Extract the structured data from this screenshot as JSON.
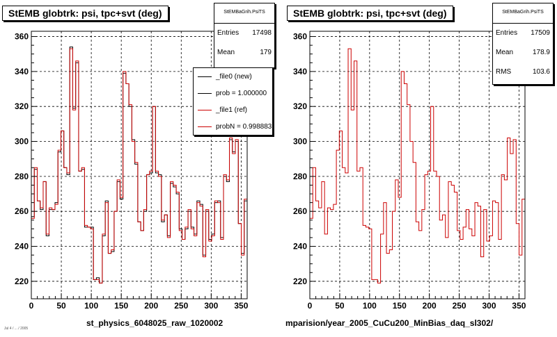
{
  "chart_data": [
    {
      "type": "line",
      "title": "StEMB globtrk: psi, tpc+svt (deg)",
      "xlabel": "st_physics_6048025_raw_1020002",
      "ylabel": "",
      "xlim": [
        0,
        360
      ],
      "ylim": [
        210,
        363
      ],
      "xticks": [
        0,
        50,
        100,
        150,
        200,
        250,
        300,
        350
      ],
      "yticks": [
        220,
        240,
        260,
        280,
        300,
        320,
        340,
        360
      ],
      "grid": true,
      "stats": {
        "name": "StEMBaGrih.PsiTS",
        "entries_label": "Entries",
        "entries": "17498",
        "mean_label": "Mean",
        "mean": "179"
      },
      "legend": {
        "placement": "top-right",
        "items": [
          {
            "label": "_file0 (new)",
            "color": "#000000"
          },
          {
            "label": "prob = 1.000000",
            "color": "#000000"
          },
          {
            "label": "_file1 (ref)",
            "color": "#cc0000"
          },
          {
            "label": "probN = 0.998883",
            "color": "#cc0000"
          }
        ]
      },
      "series": [
        {
          "name": "_file0 (new)",
          "color": "#000000",
          "values": [
            257,
            284,
            266,
            261,
            277,
            246,
            261,
            261,
            265,
            294,
            306,
            285,
            281,
            354,
            319,
            345,
            283,
            284,
            251,
            251,
            251,
            221,
            222,
            219,
            246,
            266,
            236,
            237,
            260,
            277,
            267,
            339,
            333,
            320,
            301,
            287,
            254,
            249,
            260,
            281,
            282,
            320,
            282,
            281,
            254,
            258,
            246,
            276,
            274,
            270,
            250,
            244,
            250,
            260,
            251,
            247,
            266,
            264,
            235,
            260,
            244,
            247,
            265,
            266,
            245,
            280,
            277,
            301,
            294,
            300,
            253,
            236,
            266
          ]
        },
        {
          "name": "_file1 (ref)",
          "color": "#cc0000",
          "values": [
            256,
            285,
            266,
            262,
            277,
            247,
            262,
            261,
            264,
            295,
            306,
            285,
            282,
            353,
            318,
            346,
            283,
            285,
            252,
            251,
            250,
            221,
            221,
            219,
            247,
            265,
            236,
            238,
            260,
            278,
            268,
            340,
            333,
            321,
            300,
            288,
            254,
            249,
            261,
            281,
            283,
            320,
            283,
            280,
            255,
            258,
            245,
            277,
            275,
            271,
            249,
            244,
            251,
            261,
            250,
            246,
            265,
            263,
            234,
            261,
            243,
            246,
            266,
            265,
            244,
            281,
            278,
            302,
            293,
            301,
            253,
            235,
            267
          ]
        }
      ]
    },
    {
      "type": "line",
      "title": "StEMB globtrk: psi, tpc+svt (deg)",
      "xlabel": "mparision/year_2005_CuCu200_MinBias_daq_sl302/",
      "ylabel": "",
      "xlim": [
        0,
        360
      ],
      "ylim": [
        210,
        363
      ],
      "xticks": [
        0,
        50,
        100,
        150,
        200,
        250,
        300,
        350
      ],
      "yticks": [
        220,
        240,
        260,
        280,
        300,
        320,
        340,
        360
      ],
      "grid": true,
      "stats": {
        "name": "StEMBaGrih.PsiTS",
        "entries_label": "Entries",
        "entries": "17509",
        "mean_label": "Mean",
        "mean": "178.9",
        "rms_label": "RMS",
        "rms": "103.6"
      },
      "series": [
        {
          "name": "",
          "color": "#cc0000",
          "values": [
            256,
            285,
            266,
            262,
            277,
            247,
            262,
            261,
            264,
            295,
            306,
            285,
            282,
            353,
            318,
            346,
            283,
            285,
            252,
            251,
            250,
            221,
            221,
            219,
            247,
            265,
            236,
            238,
            260,
            278,
            268,
            340,
            333,
            321,
            300,
            288,
            254,
            249,
            261,
            281,
            283,
            320,
            283,
            280,
            255,
            258,
            245,
            277,
            275,
            271,
            249,
            244,
            251,
            261,
            250,
            246,
            265,
            263,
            234,
            261,
            243,
            246,
            266,
            265,
            244,
            281,
            278,
            302,
            293,
            301,
            253,
            235,
            267
          ]
        }
      ]
    }
  ],
  "footnote_small": "Jul 4 / ... / 2005"
}
